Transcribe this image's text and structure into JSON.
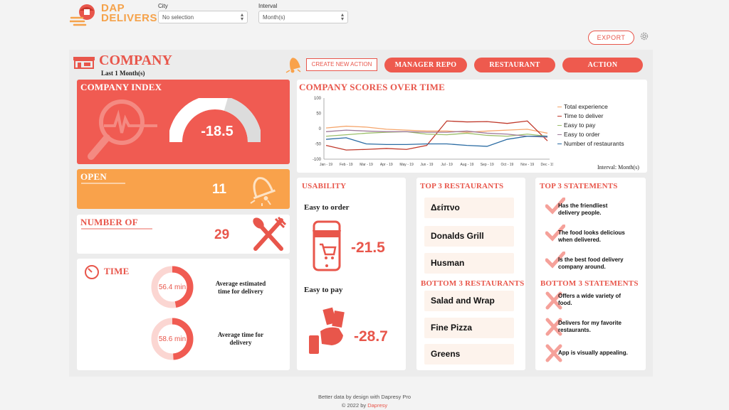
{
  "brand": {
    "line1": "DAP",
    "line2": "DELIVERS"
  },
  "filters": {
    "city": {
      "label": "City",
      "value": "No selection"
    },
    "interval": {
      "label": "Interval",
      "value": "Month(s)"
    }
  },
  "toolbar": {
    "export_label": "EXPORT"
  },
  "header": {
    "title": "COMPANY",
    "subtitle": "Last 1 Month(s)"
  },
  "actions": {
    "create_new_action": "CREATE NEW ACTION",
    "manager_repo": "MANAGER REPO",
    "restaurant": "RESTAURANT",
    "action": "ACTION"
  },
  "company_index": {
    "title": "COMPANY INDEX",
    "value": "-18.5",
    "gauge_fraction": 0.41
  },
  "open": {
    "title": "OPEN",
    "value": "11"
  },
  "number_of": {
    "title": "NUMBER OF",
    "value": "29"
  },
  "time": {
    "title": "TIME",
    "avg_estimated": {
      "value": "56.4 min",
      "label_line1": "Average estimated",
      "label_line2": "time for delivery",
      "fraction": 0.47
    },
    "avg_time": {
      "value": "58.6 min",
      "label_line1": "Average time for",
      "label_line2": "delivery",
      "fraction": 0.49
    }
  },
  "scores": {
    "title": "COMPANY SCORES OVER TIME",
    "interval_note": "Interval: Month(s)"
  },
  "chart_data": {
    "type": "line",
    "title": "COMPANY SCORES OVER TIME",
    "categories": [
      "Jan - 19",
      "Feb - 19",
      "Mar - 19",
      "Apr - 19",
      "May - 19",
      "Jun - 19",
      "Jul - 19",
      "Aug - 19",
      "Sep - 19",
      "Oct - 19",
      "Nov - 19",
      "Dec - 19"
    ],
    "ylim": [
      -100,
      100
    ],
    "yticks": [
      100,
      50,
      0,
      -50,
      -100
    ],
    "legend_position": "right",
    "series": [
      {
        "name": "Total experience",
        "color": "#f5a56b",
        "values": [
          2,
          8,
          5,
          -2,
          -5,
          -8,
          -8,
          -12,
          -8,
          -5,
          -2,
          -15
        ]
      },
      {
        "name": "Time to deliver",
        "color": "#c0392b",
        "values": [
          -55,
          -70,
          -68,
          -65,
          -68,
          -55,
          25,
          22,
          23,
          17,
          25,
          -40
        ]
      },
      {
        "name": "Easy to pay",
        "color": "#9cbf6a",
        "values": [
          -25,
          -20,
          -15,
          -12,
          -10,
          -18,
          -20,
          -15,
          -22,
          -25,
          -18,
          -25
        ]
      },
      {
        "name": "Easy to order",
        "color": "#a07b9a",
        "values": [
          -10,
          -5,
          -8,
          -10,
          -10,
          -12,
          -12,
          -8,
          -15,
          -18,
          -25,
          -28
        ]
      },
      {
        "name": "Number of restaurants",
        "color": "#2b6ca3",
        "values": [
          -35,
          -30,
          -50,
          -52,
          -52,
          -50,
          -50,
          -55,
          -58,
          -35,
          -25,
          -25
        ]
      }
    ]
  },
  "usability": {
    "title": "USABILITY",
    "easy_order_label": "Easy to order",
    "easy_order_value": "-21.5",
    "easy_pay_label": "Easy to pay",
    "easy_pay_value": "-28.7"
  },
  "top_restaurants": {
    "title": "TOP 3 RESTAURANTS",
    "items": [
      "Δείπνο",
      "Donalds Grill",
      "Husman"
    ]
  },
  "bottom_restaurants": {
    "title": "BOTTOM 3 RESTAURANTS",
    "items": [
      "Salad and Wrap",
      "Fine Pizza",
      "Greens"
    ]
  },
  "top_statements": {
    "title": "TOP 3 STATEMENTS",
    "items": [
      {
        "line1": "Has the friendliest",
        "line2": "delivery people."
      },
      {
        "line1": "The food looks delicious",
        "line2": "when delivered."
      },
      {
        "line1": "Is the best food delivery",
        "line2": "company around."
      }
    ]
  },
  "bottom_statements": {
    "title": "BOTTOM 3 STATEMENTS",
    "items": [
      {
        "line1": "Offers a wide variety of",
        "line2": "food."
      },
      {
        "line1": "Delivers for my favorite",
        "line2": "restaurants."
      },
      {
        "line1": "App is visually appealing.",
        "line2": ""
      }
    ]
  },
  "colors": {
    "accent": "#e8564b",
    "orange": "#f9a24b",
    "light_pink": "#fdf3ec"
  },
  "footer": {
    "line1": "Better data by design with Dapresy Pro",
    "line2_prefix": "© 2022 by ",
    "line2_brand": "Dapresy"
  }
}
